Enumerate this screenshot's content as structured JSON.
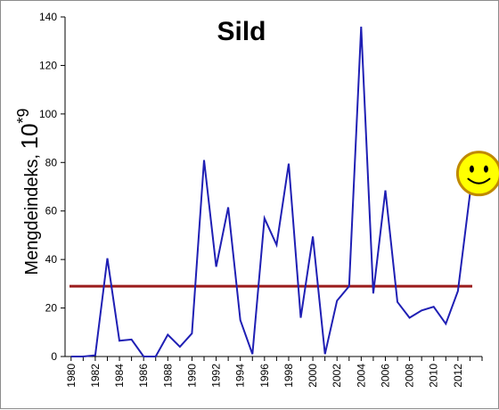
{
  "chart_data": {
    "type": "line",
    "title": "Sild",
    "ylabel_main": "Mengdeindeks, ",
    "ylabel_unit": "10",
    "ylabel_exp": "*9",
    "xlabel": "",
    "xlim": [
      1979.5,
      2014
    ],
    "ylim": [
      0,
      140
    ],
    "y_ticks": [
      0,
      20,
      40,
      60,
      80,
      100,
      120,
      140
    ],
    "x_tick_labels": [
      "1980",
      "1982",
      "1984",
      "1986",
      "1988",
      "1990",
      "1992",
      "1994",
      "1996",
      "1998",
      "2000",
      "2002",
      "2004",
      "2006",
      "2008",
      "2010",
      "2012"
    ],
    "grid": false,
    "series": [
      {
        "color": "#1f1fb4",
        "x": [
          1980,
          1981,
          1982,
          1983,
          1984,
          1985,
          1986,
          1987,
          1988,
          1989,
          1990,
          1991,
          1992,
          1993,
          1994,
          1995,
          1996,
          1997,
          1998,
          1999,
          2000,
          2001,
          2002,
          2003,
          2004,
          2005,
          2006,
          2007,
          2008,
          2009,
          2010,
          2011,
          2012,
          2013
        ],
        "values": [
          0,
          0,
          0.5,
          40.5,
          6.5,
          7,
          0,
          0,
          9,
          4,
          9.5,
          81,
          37,
          61.5,
          15,
          1,
          57,
          46,
          79.5,
          16,
          49.5,
          1,
          23,
          29,
          136,
          26,
          68.5,
          22.5,
          16,
          19,
          20.5,
          13.5,
          27,
          67
        ]
      }
    ],
    "reference_line": {
      "value": 29,
      "color": "#9b1c1c"
    },
    "smiley": {
      "icon": "smiley-face-icon",
      "fill": "#ffff00",
      "stroke": "#c08a00"
    }
  }
}
